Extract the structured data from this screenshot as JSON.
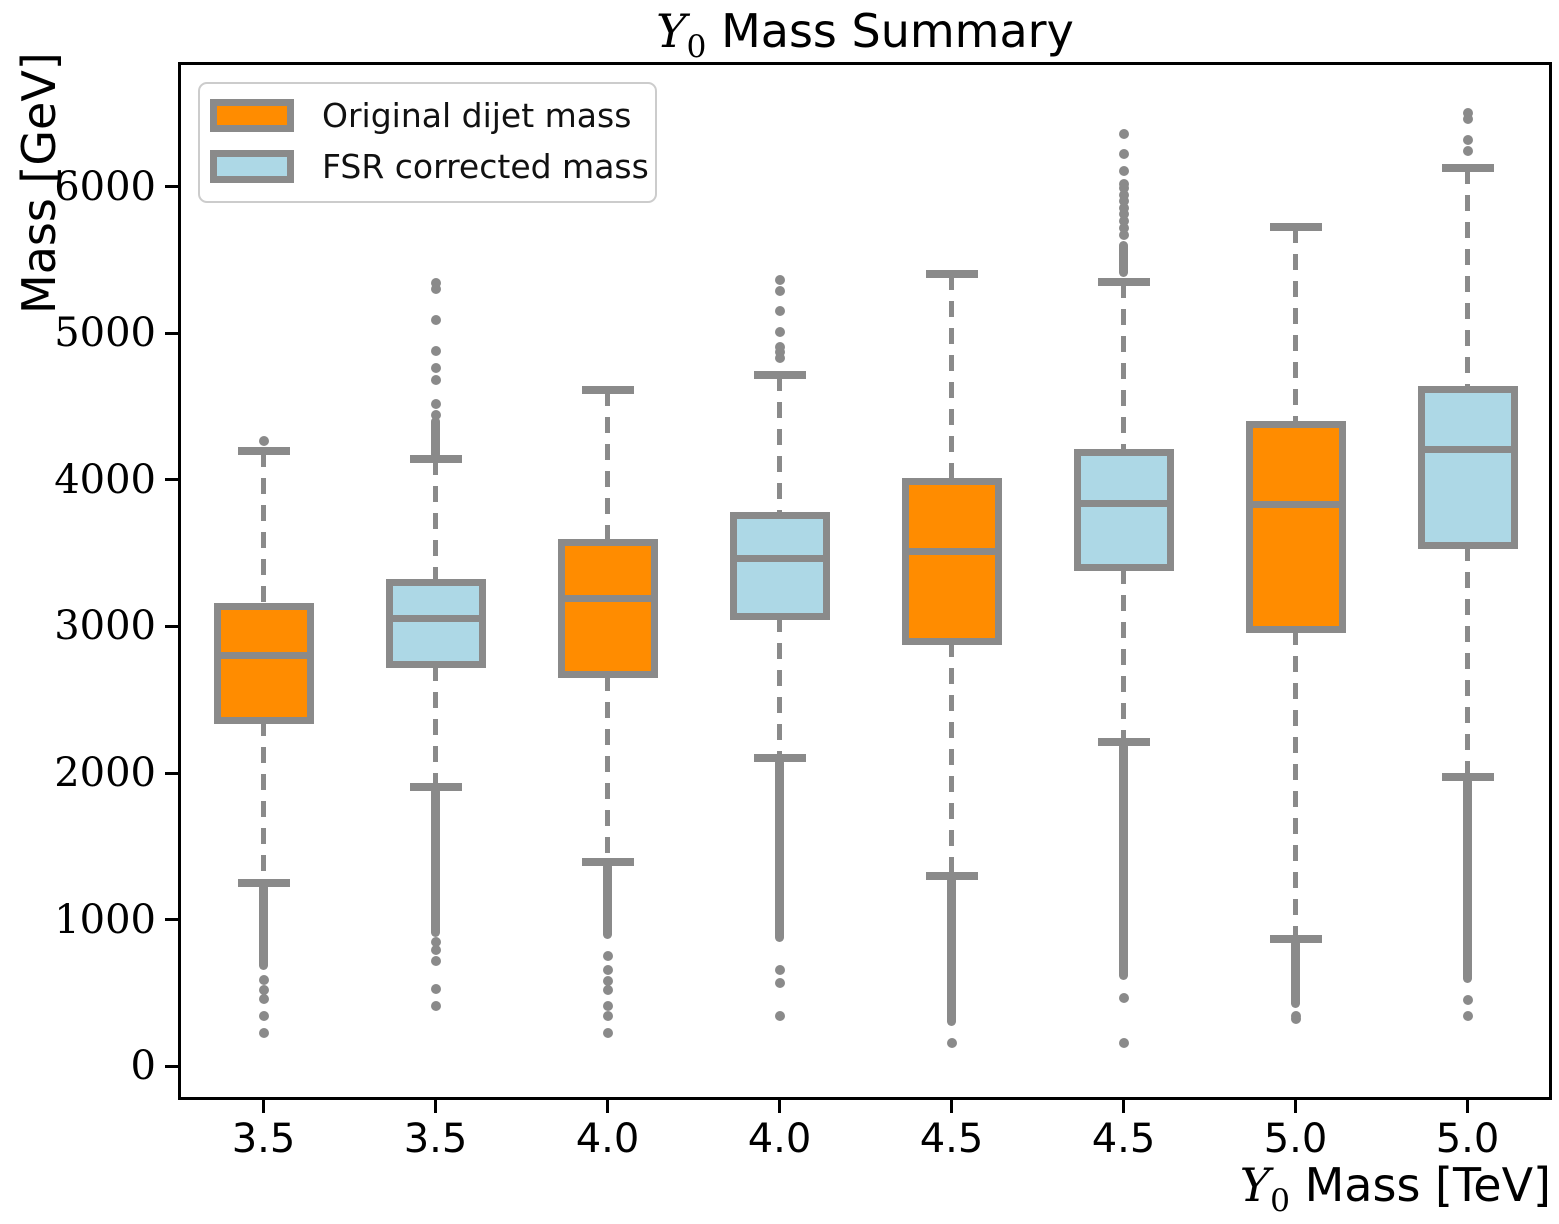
{
  "title": {
    "math_var": "Y",
    "math_sub": "0",
    "rest": " Mass Summary",
    "plain": "Y0 Mass Summary"
  },
  "ylabel": "Mass [GeV]",
  "xlabel": {
    "math_var": "Y",
    "math_sub": "0",
    "rest": " Mass [TeV]",
    "plain": "Y0 Mass [TeV]"
  },
  "legend": {
    "position": "upper left",
    "items": [
      {
        "label": "Original dijet mass",
        "color": "#ff8c00"
      },
      {
        "label": "FSR corrected mass",
        "color": "#add8e6"
      }
    ]
  },
  "colors": {
    "orange": "#ff8c00",
    "lightblue": "#add8e6",
    "box_edge_gray": "#8a8a8a",
    "spine": "#000000",
    "text": "#000000"
  },
  "chart_data": {
    "type": "boxplot",
    "title": "Y0 Mass Summary",
    "xlabel": "Y0 Mass [TeV]",
    "ylabel": "Mass [GeV]",
    "grid": false,
    "legend_position": "upper left",
    "ylim": [
      -230,
      6850
    ],
    "yticks": [
      0,
      1000,
      2000,
      3000,
      4000,
      5000,
      6000
    ],
    "categories": [
      "3.5",
      "3.5",
      "4.0",
      "4.0",
      "4.5",
      "4.5",
      "5.0",
      "5.0"
    ],
    "series_colors": {
      "Original dijet mass": "#ff8c00",
      "FSR corrected mass": "#add8e6"
    },
    "boxes": [
      {
        "category": "3.5",
        "series": "Original dijet mass",
        "whisker_low": 1250,
        "q1": 2360,
        "median": 2800,
        "q3": 3135,
        "whisker_high": 4200,
        "outlier_trail_low": [
          660,
          1250
        ],
        "outlier_trail_high": null,
        "outliers_low": [
          590,
          520,
          460,
          340,
          230
        ],
        "outliers_high": [
          4265
        ]
      },
      {
        "category": "3.5",
        "series": "FSR corrected mass",
        "whisker_low": 1905,
        "q1": 2740,
        "median": 3055,
        "q3": 3300,
        "whisker_high": 4140,
        "outlier_trail_low": [
          885,
          1905
        ],
        "outlier_trail_high": [
          4140,
          4430
        ],
        "outliers_low": [
          850,
          795,
          715,
          525,
          410
        ],
        "outliers_high": [
          4445,
          4520,
          4680,
          4760,
          4880,
          5090,
          5300,
          5340
        ]
      },
      {
        "category": "4.0",
        "series": "Original dijet mass",
        "whisker_low": 1390,
        "q1": 2670,
        "median": 3190,
        "q3": 3570,
        "whisker_high": 4615,
        "outlier_trail_low": [
          865,
          1390
        ],
        "outlier_trail_high": null,
        "outliers_low": [
          750,
          660,
          580,
          520,
          410,
          340,
          230
        ],
        "outliers_high": []
      },
      {
        "category": "4.0",
        "series": "FSR corrected mass",
        "whisker_low": 2100,
        "q1": 3070,
        "median": 3465,
        "q3": 3760,
        "whisker_high": 4715,
        "outlier_trail_low": [
          845,
          2100
        ],
        "outlier_trail_high": null,
        "outliers_low": [
          660,
          570,
          340
        ],
        "outliers_high": [
          4830,
          4870,
          4905,
          5010,
          5150,
          5290,
          5360
        ]
      },
      {
        "category": "4.5",
        "series": "Original dijet mass",
        "whisker_low": 1300,
        "q1": 2900,
        "median": 3510,
        "q3": 3990,
        "whisker_high": 5405,
        "outlier_trail_low": [
          275,
          1300
        ],
        "outlier_trail_high": null,
        "outliers_low": [
          160
        ],
        "outliers_high": []
      },
      {
        "category": "4.5",
        "series": "FSR corrected mass",
        "whisker_low": 2210,
        "q1": 3400,
        "median": 3840,
        "q3": 4185,
        "whisker_high": 5350,
        "outlier_trail_low": [
          590,
          2210
        ],
        "outlier_trail_high": [
          5385,
          5630
        ],
        "outliers_low": [
          465,
          160
        ],
        "outliers_high": [
          5670,
          5720,
          5765,
          5810,
          5855,
          5900,
          5945,
          5990,
          6020,
          6105,
          6225,
          6360
        ]
      },
      {
        "category": "5.0",
        "series": "Original dijet mass",
        "whisker_low": 865,
        "q1": 2980,
        "median": 3830,
        "q3": 4375,
        "whisker_high": 5725,
        "outlier_trail_low": [
          400,
          865
        ],
        "outlier_trail_high": null,
        "outliers_low": [
          345,
          320
        ],
        "outliers_high": []
      },
      {
        "category": "5.0",
        "series": "FSR corrected mass",
        "whisker_low": 1975,
        "q1": 3555,
        "median": 4205,
        "q3": 4615,
        "whisker_high": 6130,
        "outlier_trail_low": [
          570,
          1975
        ],
        "outlier_trail_high": null,
        "outliers_low": [
          455,
          340
        ],
        "outliers_high": [
          6245,
          6320,
          6460,
          6505
        ]
      }
    ]
  }
}
